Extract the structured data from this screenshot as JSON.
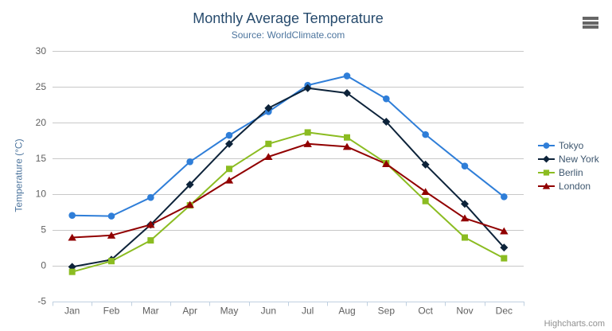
{
  "chart_data": {
    "type": "line",
    "title": "Monthly Average Temperature",
    "subtitle": "Source: WorldClimate.com",
    "categories": [
      "Jan",
      "Feb",
      "Mar",
      "Apr",
      "May",
      "Jun",
      "Jul",
      "Aug",
      "Sep",
      "Oct",
      "Nov",
      "Dec"
    ],
    "xlabel": "",
    "ylabel": "Temperature (°C)",
    "ylim": [
      -5,
      30
    ],
    "ytick_step": 5,
    "yticks": [
      -5,
      0,
      5,
      10,
      15,
      20,
      25,
      30
    ],
    "grid": true,
    "legend_position": "right",
    "series": [
      {
        "name": "Tokyo",
        "color": "#2f7ed8",
        "marker": "circle",
        "values": [
          7.0,
          6.9,
          9.5,
          14.5,
          18.2,
          21.5,
          25.2,
          26.5,
          23.3,
          18.3,
          13.9,
          9.6
        ]
      },
      {
        "name": "New York",
        "color": "#0d233a",
        "marker": "diamond",
        "values": [
          -0.2,
          0.8,
          5.7,
          11.3,
          17.0,
          22.0,
          24.8,
          24.1,
          20.1,
          14.1,
          8.6,
          2.5
        ]
      },
      {
        "name": "Berlin",
        "color": "#8bbc21",
        "marker": "square",
        "values": [
          -0.9,
          0.6,
          3.5,
          8.4,
          13.5,
          17.0,
          18.6,
          17.9,
          14.3,
          9.0,
          3.9,
          1.0
        ]
      },
      {
        "name": "London",
        "color": "#910000",
        "marker": "triangle",
        "values": [
          3.9,
          4.2,
          5.7,
          8.5,
          11.9,
          15.2,
          17.0,
          16.6,
          14.2,
          10.3,
          6.6,
          4.8
        ]
      }
    ]
  },
  "credits": {
    "label": "Highcharts.com"
  },
  "icons": {
    "export_menu": "hamburger-icon"
  },
  "colors": {
    "background": "#ffffff",
    "title": "#274b6d",
    "subtitle": "#4d759e",
    "axis_title": "#4d759e",
    "axis_label": "#606060",
    "gridline": "#c8c8c8",
    "axis_line": "#c0d0e0",
    "legend_text": "#3e576f",
    "credits": "#909090",
    "hamburger": "#666666"
  }
}
